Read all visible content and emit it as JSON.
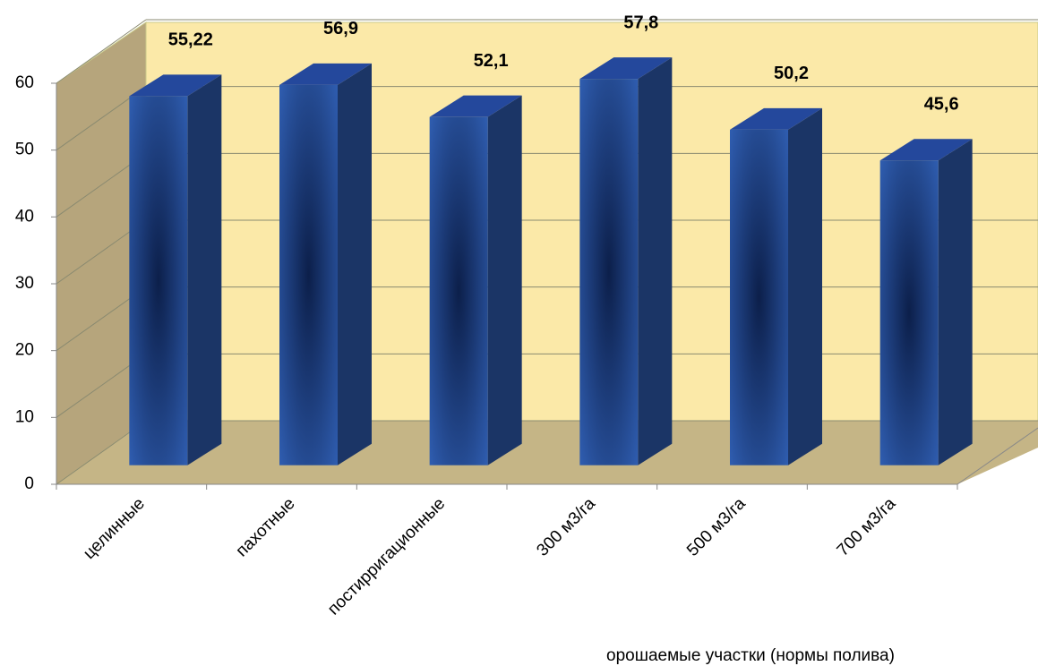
{
  "chart_data": {
    "type": "bar3d",
    "categories": [
      "целинные",
      "пахотные",
      "постирригационные",
      "300 м3/га",
      "500 м3/га",
      "700 м3/га"
    ],
    "values": [
      55.22,
      56.9,
      52.1,
      57.8,
      50.2,
      45.6
    ],
    "value_labels": [
      "55,22",
      "56,9",
      "52,1",
      "57,8",
      "50,2",
      "45,6"
    ],
    "value_label_colors": [
      "#1f3864",
      "#000000",
      "#000000",
      "#000000",
      "#000000",
      "#000000"
    ],
    "color": "#2a55a5",
    "x_label": "орошаемые участки (нормы полива)",
    "ylim": [
      0,
      60
    ],
    "yticks": [
      0,
      10,
      20,
      30,
      40,
      50,
      60
    ],
    "grid": true
  }
}
